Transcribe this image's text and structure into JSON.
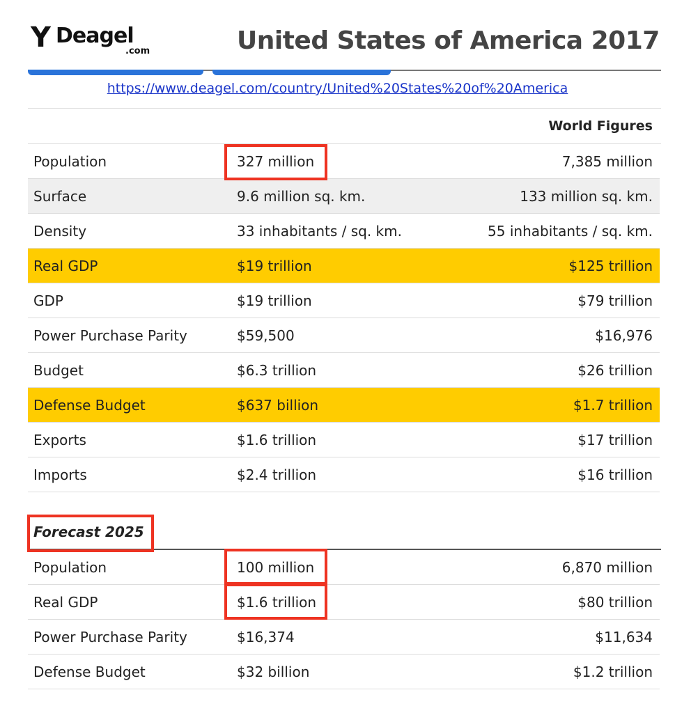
{
  "header": {
    "logo_text": "Deagel",
    "logo_suffix": ".com",
    "title": "United States of America 2017"
  },
  "url": "https://www.deagel.com/country/United%20States%20of%20America",
  "table": {
    "world_header": "World Figures",
    "rows": [
      {
        "label": "Population",
        "value": "327 million",
        "world": "7,385 million",
        "style": "white"
      },
      {
        "label": "Surface",
        "value": "9.6 million sq. km.",
        "world": "133 million sq. km.",
        "style": "gray"
      },
      {
        "label": "Density",
        "value": "33 inhabitants / sq. km.",
        "world": "55 inhabitants / sq. km.",
        "style": "white"
      },
      {
        "label": "Real GDP",
        "value": "$19 trillion",
        "world": "$125 trillion",
        "style": "gold"
      },
      {
        "label": "GDP",
        "value": "$19 trillion",
        "world": "$79 trillion",
        "style": "white"
      },
      {
        "label": "Power Purchase Parity",
        "value": "$59,500",
        "world": "$16,976",
        "style": "white"
      },
      {
        "label": "Budget",
        "value": "$6.3 trillion",
        "world": "$26 trillion",
        "style": "white"
      },
      {
        "label": "Defense Budget",
        "value": "$637 billion",
        "world": "$1.7 trillion",
        "style": "gold"
      },
      {
        "label": "Exports",
        "value": "$1.6 trillion",
        "world": "$17 trillion",
        "style": "white"
      },
      {
        "label": "Imports",
        "value": "$2.4 trillion",
        "world": "$16 trillion",
        "style": "white"
      }
    ]
  },
  "forecast": {
    "title": "Forecast 2025",
    "rows": [
      {
        "label": "Population",
        "value": "100 million",
        "world": "6,870 million"
      },
      {
        "label": "Real GDP",
        "value": "$1.6 trillion",
        "world": "$80 trillion"
      },
      {
        "label": "Power Purchase Parity",
        "value": "$16,374",
        "world": "$11,634"
      },
      {
        "label": "Defense Budget",
        "value": "$32 billion",
        "world": "$1.2 trillion"
      }
    ]
  },
  "colors": {
    "highlight": "#ffcc00",
    "annotation_box": "#ee3322",
    "link": "#1a35c9",
    "tab": "#2a73d9"
  }
}
